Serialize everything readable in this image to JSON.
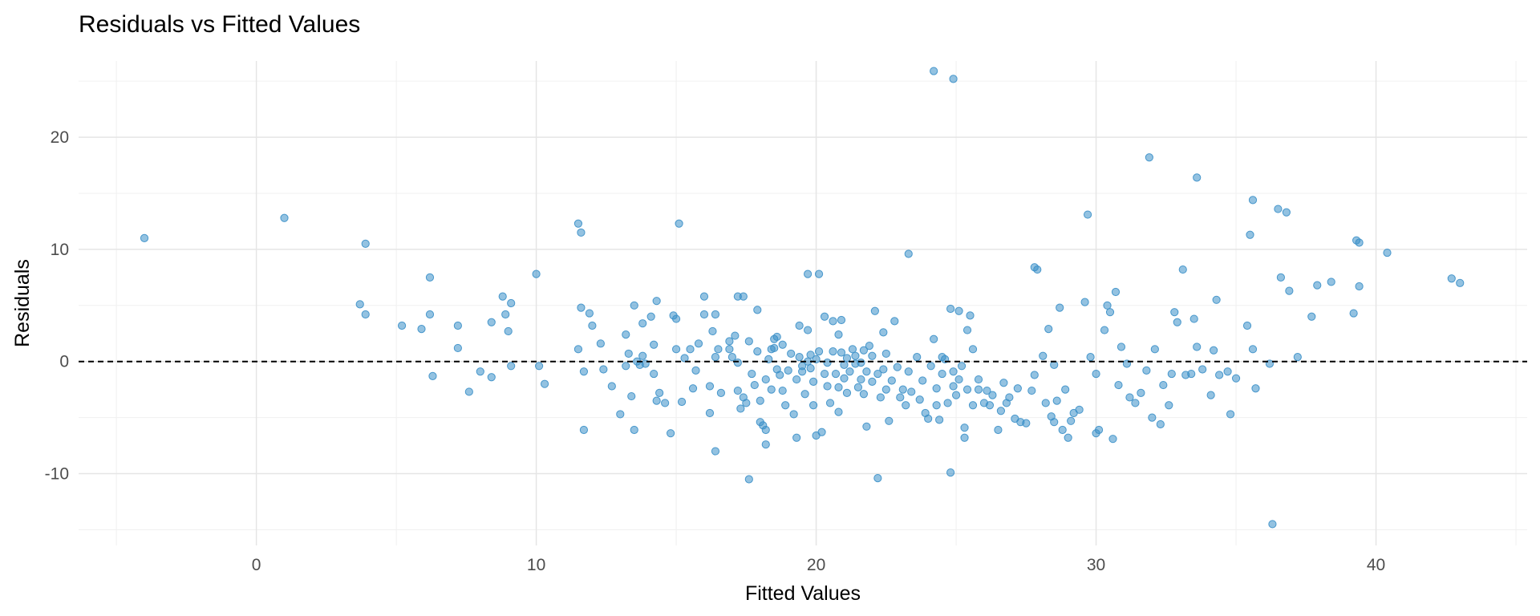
{
  "chart_data": {
    "type": "scatter",
    "title": "Residuals vs Fitted Values",
    "x_label": "Fitted Values",
    "y_label": "Residuals",
    "xlim": [
      -6.35,
      45.4
    ],
    "ylim": [
      -16.4,
      26.8
    ],
    "xticks": [
      0,
      10,
      20,
      30,
      40
    ],
    "yticks": [
      -10,
      0,
      10,
      20
    ],
    "minor_xticks": [
      -5,
      5,
      15,
      25,
      35,
      45
    ],
    "minor_yticks": [
      -15,
      -5,
      5,
      15,
      25
    ],
    "grid": true,
    "hline": 0,
    "color": "#3a8fc8",
    "x": [
      -4.0,
      1.0,
      3.9,
      3.7,
      3.9,
      5.2,
      5.9,
      6.2,
      6.2,
      6.3,
      7.2,
      7.2,
      7.6,
      8.0,
      8.4,
      8.4,
      8.8,
      8.9,
      9.0,
      9.1,
      9.1,
      10.0,
      10.1,
      10.3,
      11.5,
      11.6,
      11.6,
      11.5,
      11.7,
      11.7,
      11.9,
      12.0,
      12.3,
      12.4,
      12.7,
      13.0,
      13.2,
      13.2,
      13.3,
      13.4,
      13.5,
      13.5,
      13.6,
      13.7,
      13.8,
      13.8,
      13.9,
      14.1,
      14.2,
      14.2,
      14.3,
      14.3,
      14.4,
      14.6,
      14.8,
      14.9,
      15.0,
      15.0,
      15.1,
      15.2,
      15.3,
      15.5,
      15.6,
      15.7,
      15.8,
      16.0,
      16.0,
      16.2,
      16.2,
      16.3,
      16.4,
      16.4,
      16.4,
      16.5,
      16.6,
      16.9,
      16.9,
      17.0,
      17.1,
      17.2,
      17.2,
      17.2,
      17.3,
      17.4,
      17.4,
      17.5,
      17.6,
      17.6,
      17.7,
      17.8,
      17.9,
      17.9,
      18.0,
      18.0,
      18.1,
      18.2,
      18.2,
      18.2,
      18.3,
      18.4,
      18.4,
      18.5,
      18.5,
      18.6,
      18.6,
      18.7,
      18.8,
      18.8,
      18.9,
      19.0,
      19.1,
      19.2,
      19.3,
      19.3,
      19.4,
      19.4,
      19.5,
      19.5,
      19.6,
      19.7,
      19.7,
      19.7,
      19.8,
      19.8,
      19.9,
      19.9,
      20.0,
      20.0,
      20.1,
      20.1,
      20.2,
      20.3,
      20.3,
      20.4,
      20.4,
      20.5,
      20.6,
      20.6,
      20.7,
      20.8,
      20.8,
      20.8,
      20.9,
      20.9,
      21.0,
      21.0,
      21.1,
      21.1,
      21.2,
      21.3,
      21.4,
      21.4,
      21.5,
      21.6,
      21.6,
      21.7,
      21.7,
      21.8,
      21.8,
      21.9,
      22.0,
      22.0,
      22.1,
      22.2,
      22.2,
      22.3,
      22.4,
      22.4,
      22.5,
      22.5,
      22.6,
      22.7,
      22.8,
      22.9,
      23.0,
      23.1,
      23.2,
      23.3,
      23.3,
      23.4,
      23.6,
      23.7,
      23.8,
      23.9,
      24.0,
      24.1,
      24.2,
      24.2,
      24.3,
      24.3,
      24.4,
      24.5,
      24.5,
      24.6,
      24.7,
      24.8,
      24.8,
      24.9,
      24.9,
      24.9,
      25.0,
      25.1,
      25.1,
      25.2,
      25.3,
      25.3,
      25.4,
      25.4,
      25.5,
      25.6,
      25.6,
      25.8,
      25.8,
      26.0,
      26.1,
      26.2,
      26.3,
      26.5,
      26.6,
      26.7,
      26.8,
      26.9,
      27.1,
      27.2,
      27.3,
      27.5,
      27.7,
      27.8,
      27.9,
      27.8,
      28.1,
      28.2,
      28.3,
      28.4,
      28.5,
      28.5,
      28.6,
      28.7,
      28.8,
      28.9,
      29.0,
      29.1,
      29.2,
      29.4,
      29.6,
      29.7,
      29.8,
      30.0,
      30.0,
      30.1,
      30.3,
      30.4,
      30.5,
      30.6,
      30.7,
      30.8,
      30.9,
      31.1,
      31.2,
      31.4,
      31.6,
      31.8,
      31.9,
      32.0,
      32.1,
      32.3,
      32.4,
      32.6,
      32.7,
      32.8,
      32.9,
      33.1,
      33.2,
      33.4,
      33.5,
      33.6,
      33.6,
      33.8,
      34.1,
      34.2,
      34.3,
      34.4,
      34.7,
      34.8,
      35.0,
      35.4,
      35.5,
      35.6,
      35.6,
      35.7,
      36.2,
      36.3,
      36.5,
      36.6,
      36.8,
      36.9,
      37.2,
      37.7,
      37.9,
      38.4,
      39.2,
      39.3,
      39.4,
      39.4,
      40.4,
      42.7,
      43.0
    ],
    "values": [
      11.0,
      12.8,
      10.5,
      5.1,
      4.2,
      3.2,
      2.9,
      7.5,
      4.2,
      -1.3,
      3.2,
      1.2,
      -2.7,
      -0.9,
      -1.4,
      3.5,
      5.8,
      4.2,
      2.7,
      5.2,
      -0.4,
      7.8,
      -0.4,
      -2.0,
      12.3,
      11.5,
      4.8,
      1.1,
      -0.9,
      -6.1,
      4.3,
      3.2,
      1.6,
      -0.7,
      -2.2,
      -4.7,
      2.4,
      -0.4,
      0.7,
      -3.1,
      5.0,
      -6.1,
      0,
      -0.3,
      3.4,
      0.5,
      -0.2,
      4.0,
      1.5,
      -1.1,
      5.4,
      -3.5,
      -2.8,
      -3.7,
      -6.4,
      4.1,
      3.8,
      1.1,
      12.3,
      -3.6,
      0.3,
      1.1,
      -2.4,
      -0.8,
      1.6,
      5.8,
      4.2,
      -2.2,
      -4.6,
      2.7,
      0.4,
      4.2,
      -8.0,
      1.1,
      -2.8,
      1.1,
      1.8,
      0.4,
      2.3,
      -0.1,
      5.8,
      -2.6,
      -4.2,
      5.8,
      -3.2,
      -3.7,
      1.8,
      -10.5,
      -1.1,
      -2.1,
      4.6,
      0.9,
      -3.5,
      -5.4,
      -5.7,
      -6.1,
      -7.4,
      -1.6,
      0.2,
      -2.5,
      1.1,
      2.0,
      1.2,
      -0.7,
      2.2,
      -1.2,
      1.5,
      -2.6,
      -3.9,
      -0.8,
      0.7,
      -4.7,
      -6.8,
      -1.6,
      3.2,
      0.4,
      -0.4,
      -0.9,
      -2.9,
      2.8,
      0,
      7.8,
      0.6,
      -0.6,
      -1.8,
      -3.9,
      -6.6,
      0.2,
      0.9,
      7.8,
      -6.3,
      4.0,
      -1.1,
      -0.1,
      -2.2,
      -3.7,
      3.6,
      0.9,
      -1.1,
      -4.5,
      -2.3,
      2.4,
      3.7,
      0.8,
      -0.3,
      -1.5,
      -2.8,
      0.3,
      -0.9,
      1.1,
      -0.2,
      0.5,
      -2.3,
      -1.6,
      -0.1,
      -2.9,
      1.0,
      -0.9,
      -5.8,
      1.4,
      -1.8,
      0.5,
      4.5,
      -10.4,
      -1.1,
      -3.2,
      -0.7,
      2.6,
      -2.5,
      0.7,
      -5.3,
      -1.7,
      3.6,
      -0.5,
      -3.2,
      -2.5,
      -3.9,
      9.6,
      -0.9,
      -2.7,
      0.4,
      -3.4,
      -1.7,
      -4.6,
      -5.1,
      -0.4,
      2.0,
      25.9,
      -2.4,
      -3.9,
      -5.2,
      0.4,
      -1.1,
      0.2,
      -3.7,
      4.7,
      -9.9,
      -2.2,
      25.2,
      -0.9,
      -3.0,
      4.5,
      -1.6,
      -0.4,
      -5.9,
      -6.8,
      2.8,
      -2.5,
      4.1,
      1.1,
      -3.9,
      -1.6,
      -2.5,
      -3.7,
      -2.6,
      -3.9,
      -3.0,
      -6.1,
      -4.4,
      -1.9,
      -3.7,
      -3.2,
      -5.1,
      -2.4,
      -5.4,
      -5.5,
      -2.6,
      8.4,
      8.2,
      -1.2,
      0.5,
      -3.7,
      2.9,
      -4.9,
      -5.4,
      -0.3,
      -3.5,
      4.8,
      -6.1,
      -2.5,
      -6.8,
      -5.3,
      -4.6,
      -4.3,
      5.3,
      13.1,
      0.4,
      -1.1,
      -6.4,
      -6.1,
      2.8,
      5.0,
      4.4,
      -6.9,
      6.2,
      -2.1,
      1.3,
      -0.2,
      -3.2,
      -3.7,
      -2.8,
      -0.8,
      18.2,
      -5.0,
      1.1,
      -5.6,
      -2.1,
      -3.9,
      -1.1,
      4.4,
      3.5,
      8.2,
      -1.2,
      -1.1,
      3.8,
      1.3,
      16.4,
      -0.7,
      -3.0,
      1.0,
      5.5,
      -1.2,
      -0.9,
      -4.7,
      -1.5,
      3.2,
      11.3,
      1.1,
      14.4,
      -2.4,
      -0.2,
      -14.5,
      13.6,
      7.5,
      13.3,
      6.3,
      0.4,
      4.0,
      6.8,
      7.1,
      4.3,
      10.8,
      10.6,
      6.7,
      9.7,
      7.4,
      7.0
    ]
  }
}
